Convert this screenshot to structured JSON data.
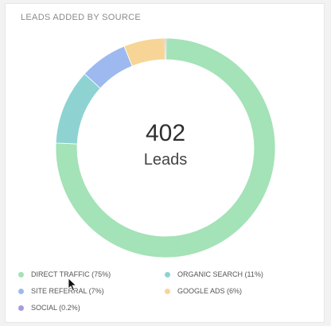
{
  "card": {
    "title": "LEADS ADDED BY SOURCE"
  },
  "center": {
    "value": "402",
    "label": "Leads"
  },
  "colors": {
    "direct_traffic": "#a4e2b7",
    "organic_search": "#8ed3d2",
    "site_referral": "#9db9ef",
    "google_ads": "#f7d596",
    "social": "#a99ade"
  },
  "chart_data": {
    "type": "pie",
    "variant": "donut",
    "title": "LEADS ADDED BY SOURCE",
    "total": 402,
    "slices": [
      {
        "label": "DIRECT TRAFFIC (75%)",
        "name": "DIRECT TRAFFIC",
        "percent": 75,
        "color": "#a4e2b7"
      },
      {
        "label": "ORGANIC SEARCH (11%)",
        "name": "ORGANIC SEARCH",
        "percent": 11,
        "color": "#8ed3d2"
      },
      {
        "label": "SITE REFERRAL (7%)",
        "name": "SITE REFERRAL",
        "percent": 7,
        "color": "#9db9ef"
      },
      {
        "label": "GOOGLE ADS (6%)",
        "name": "GOOGLE ADS",
        "percent": 6,
        "color": "#f7d596"
      },
      {
        "label": "SOCIAL (0.2%)",
        "name": "SOCIAL",
        "percent": 0.2,
        "color": "#a99ade"
      }
    ],
    "legend_position": "bottom"
  }
}
